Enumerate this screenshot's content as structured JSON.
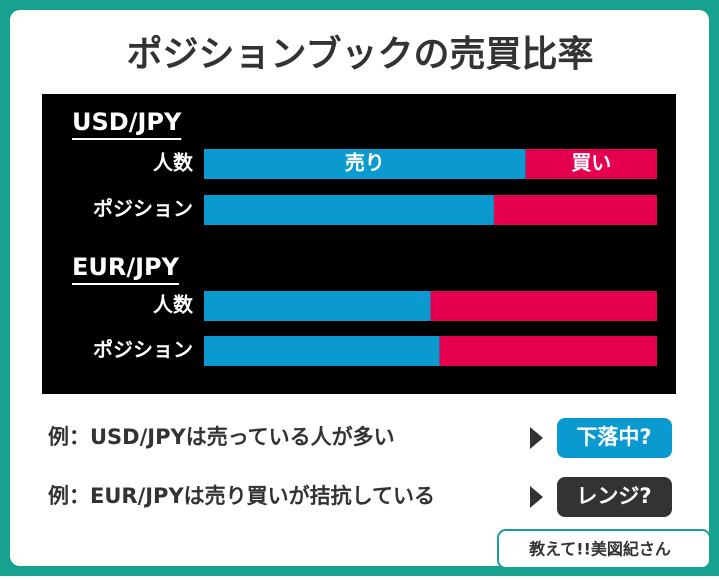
{
  "title": "ポジションブックの売買比率",
  "chart_data": [
    {
      "type": "bar",
      "title": "USD/JPY",
      "categories": [
        "人数",
        "ポジション"
      ],
      "series": [
        {
          "name": "売り",
          "color": "#0a9ad0",
          "values": [
            71,
            64
          ]
        },
        {
          "name": "買い",
          "color": "#e5004f",
          "values": [
            29,
            36
          ]
        }
      ]
    },
    {
      "type": "bar",
      "title": "EUR/JPY",
      "categories": [
        "人数",
        "ポジション"
      ],
      "series": [
        {
          "color": "#0a9ad0",
          "values": [
            50,
            52
          ]
        },
        {
          "color": "#e5004f",
          "values": [
            50,
            48
          ]
        }
      ]
    }
  ],
  "notes": [
    {
      "text": "例：USD/JPYは売っている人が多い",
      "badge": "下落中?",
      "color": "#0a9ad0"
    },
    {
      "text": "例：EUR/JPYは売り買いが拮抗している",
      "badge": "レンジ?",
      "color": "#333333"
    }
  ],
  "logo": "教えて!!美図紀さん"
}
